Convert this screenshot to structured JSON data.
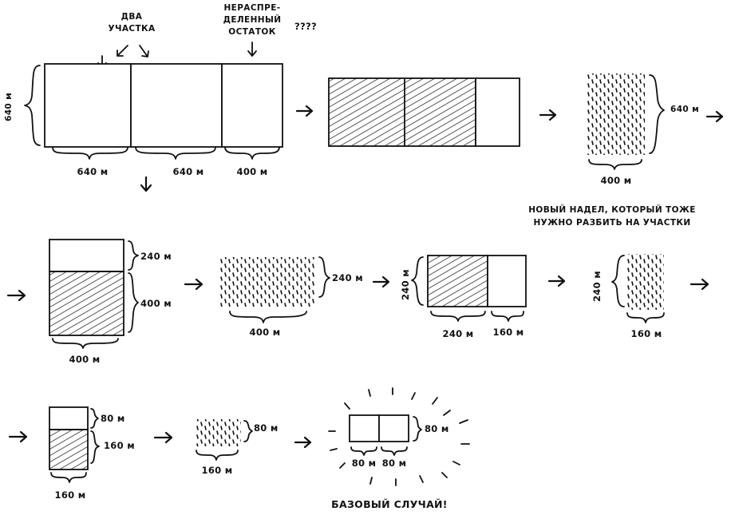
{
  "labels": {
    "two_plots": [
      "ДВА",
      "УЧАСТКА"
    ],
    "undivided_remainder": [
      "НЕРАСПРЕ-",
      "ДЕЛЕННЫЙ",
      "ОСТАТОК"
    ],
    "question_marks": "????",
    "new_plot_note": [
      "НОВЫЙ НАДЕЛ, КОТОРЫЙ ТОЖЕ",
      "НУЖНО РАЗБИТЬ НА УЧАСТКИ"
    ],
    "base_case": "БАЗОВЫЙ СЛУЧАЙ!"
  },
  "dimensions": {
    "d640": "640 м",
    "d400": "400 м",
    "d240": "240 м",
    "d160": "160 м",
    "d80": "80 м",
    "d400_bottom": "400 м"
  }
}
